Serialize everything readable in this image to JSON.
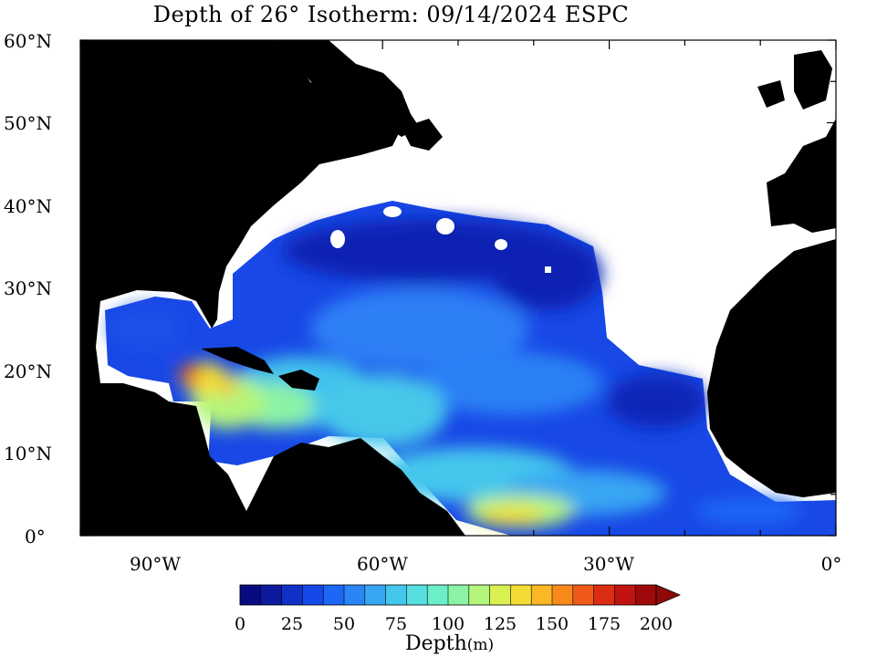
{
  "title": "Depth of 26° Isotherm: 09/14/2024 ESPC",
  "lat_labels": [
    "60°N",
    "50°N",
    "40°N",
    "30°N",
    "20°N",
    "10°N",
    "0°"
  ],
  "lon_labels": [
    "90°W",
    "60°W",
    "30°W",
    "0°"
  ],
  "colorbar": {
    "ticks": [
      "0",
      "25",
      "50",
      "75",
      "100",
      "125",
      "150",
      "175",
      "200"
    ],
    "label": "Depth",
    "unit": "(m)",
    "range": [
      0,
      200
    ],
    "extend": "max",
    "colors": [
      "#0a0a80",
      "#0c1a9e",
      "#1030c8",
      "#1448e8",
      "#1e66f5",
      "#2a86f7",
      "#38a6f3",
      "#45c6ec",
      "#56dfe0",
      "#6ceec8",
      "#8cf3a6",
      "#b4f57c",
      "#d9f053",
      "#f3dd34",
      "#f9b824",
      "#f88a1c",
      "#f05a18",
      "#dd2c14",
      "#c01410",
      "#9e0a0a"
    ]
  },
  "map": {
    "lat_range": [
      0,
      60
    ],
    "lon_range": [
      -100,
      0
    ],
    "land_color": "#000000",
    "no_data_color": "#ffffff"
  }
}
